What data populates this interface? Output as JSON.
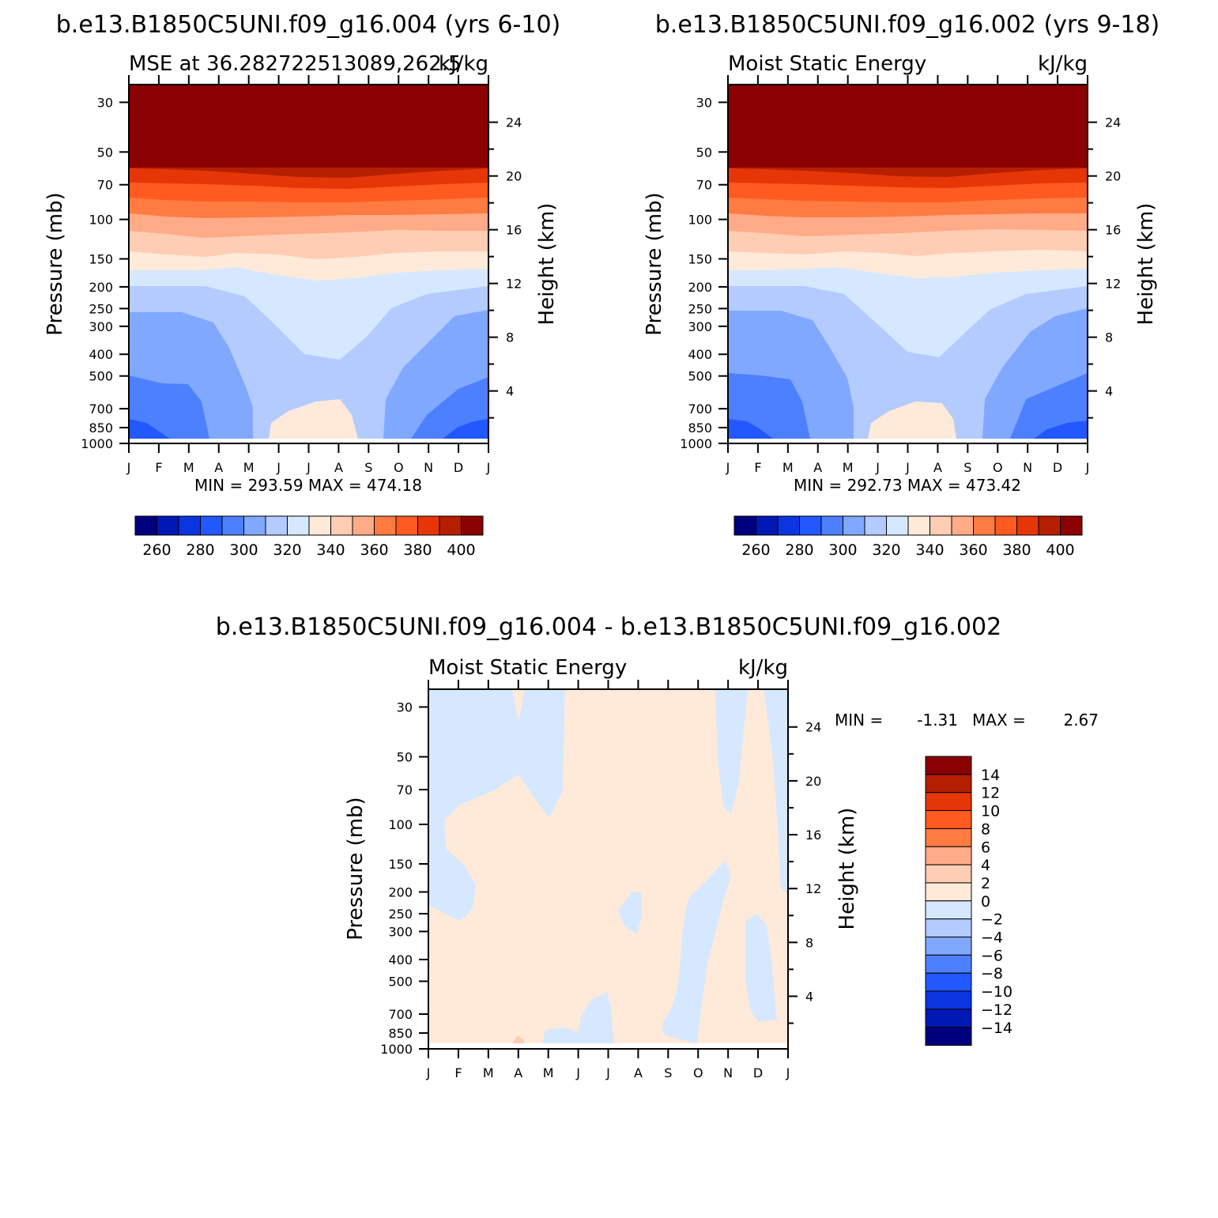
{
  "panels": {
    "p1": {
      "case_title": "b.e13.B1850C5UNI.f09_g16.004 (yrs 6-10)",
      "left_title": "MSE at 36.282722513089,262.5",
      "right_title": "kJ/kg",
      "ylabel": "Pressure (mb)",
      "ylabel2": "Height (km)",
      "minmax": "MIN = 293.59 MAX = 474.18"
    },
    "p2": {
      "case_title": "b.e13.B1850C5UNI.f09_g16.002 (yrs 9-18)",
      "left_title": "Moist Static Energy",
      "right_title": "kJ/kg",
      "ylabel": "Pressure (mb)",
      "ylabel2": "Height (km)",
      "minmax": "MIN = 292.73 MAX = 473.42"
    },
    "p3": {
      "case_title": "b.e13.B1850C5UNI.f09_g16.004 - b.e13.B1850C5UNI.f09_g16.002",
      "left_title": "Moist Static Energy",
      "right_title": "kJ/kg",
      "ylabel": "Pressure (mb)",
      "ylabel2": "Height (km)",
      "minmax_min_label": "MIN =",
      "minmax_min_value": "-1.31",
      "minmax_max_label": "MAX =",
      "minmax_max_value": "2.67"
    }
  },
  "chart_data": [
    {
      "type": "heatmap",
      "title": "MSE at 36.282722513089,262.5",
      "units": "kJ/kg",
      "x_ticks": [
        "J",
        "F",
        "M",
        "A",
        "M",
        "J",
        "J",
        "A",
        "S",
        "O",
        "N",
        "D",
        "J"
      ],
      "y_ticks": [
        "30",
        "50",
        "70",
        "100",
        "150",
        "200",
        "250",
        "300",
        "400",
        "500",
        "700",
        "850",
        "1000"
      ],
      "y2_ticks": [
        "24",
        "20",
        "16",
        "12",
        "8",
        "4"
      ],
      "ylabel": "Pressure (mb)",
      "ylabel2": "Height (km)",
      "min": 293.59,
      "max": 474.18,
      "colorbar_labels": [
        "260",
        "280",
        "300",
        "320",
        "340",
        "360",
        "380",
        "400"
      ]
    },
    {
      "type": "heatmap",
      "title": "Moist Static Energy",
      "units": "kJ/kg",
      "x_ticks": [
        "J",
        "F",
        "M",
        "A",
        "M",
        "J",
        "J",
        "A",
        "S",
        "O",
        "N",
        "D",
        "J"
      ],
      "y_ticks": [
        "30",
        "50",
        "70",
        "100",
        "150",
        "200",
        "250",
        "300",
        "400",
        "500",
        "700",
        "850",
        "1000"
      ],
      "y2_ticks": [
        "24",
        "20",
        "16",
        "12",
        "8",
        "4"
      ],
      "ylabel": "Pressure (mb)",
      "ylabel2": "Height (km)",
      "min": 292.73,
      "max": 473.42,
      "colorbar_labels": [
        "260",
        "280",
        "300",
        "320",
        "340",
        "360",
        "380",
        "400"
      ]
    },
    {
      "type": "heatmap",
      "title": "Moist Static Energy",
      "units": "kJ/kg",
      "x_ticks": [
        "J",
        "F",
        "M",
        "A",
        "M",
        "J",
        "J",
        "A",
        "S",
        "O",
        "N",
        "D",
        "J"
      ],
      "y_ticks": [
        "30",
        "50",
        "70",
        "100",
        "150",
        "200",
        "250",
        "300",
        "400",
        "500",
        "700",
        "850",
        "1000"
      ],
      "y2_ticks": [
        "24",
        "20",
        "16",
        "12",
        "8",
        "4"
      ],
      "ylabel": "Pressure (mb)",
      "ylabel2": "Height (km)",
      "min": -1.31,
      "max": 2.67,
      "colorbar_labels": [
        "14",
        "12",
        "10",
        "8",
        "6",
        "4",
        "2",
        "0",
        "−2",
        "−4",
        "−6",
        "−8",
        "−10",
        "−12",
        "−14"
      ]
    }
  ],
  "colors": {
    "c0": "#00007f",
    "c1": "#0018b4",
    "c2": "#0a35e1",
    "c3": "#2158ff",
    "c4": "#4d80ff",
    "c5": "#80a8ff",
    "c6": "#b3cbff",
    "c7": "#d6e8ff",
    "w0": "#ffead9",
    "w1": "#ffcdb3",
    "w2": "#ffab87",
    "w3": "#ff7b42",
    "w4": "#ff5a1f",
    "w5": "#e63608",
    "w6": "#b51f00",
    "w7": "#8b0000"
  }
}
